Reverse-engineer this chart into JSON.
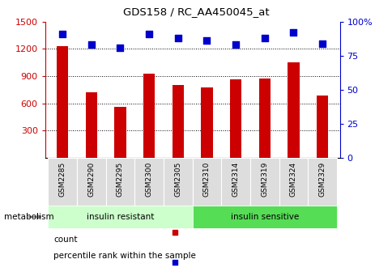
{
  "title": "GDS158 / RC_AA450045_at",
  "samples": [
    "GSM2285",
    "GSM2290",
    "GSM2295",
    "GSM2300",
    "GSM2305",
    "GSM2310",
    "GSM2314",
    "GSM2319",
    "GSM2324",
    "GSM2329"
  ],
  "counts": [
    1230,
    720,
    565,
    930,
    800,
    775,
    865,
    875,
    1055,
    685
  ],
  "percentiles": [
    91,
    83,
    81,
    91,
    88,
    86,
    83,
    88,
    92,
    84
  ],
  "group1_label": "insulin resistant",
  "group2_label": "insulin sensitive",
  "group1_count": 5,
  "group2_count": 5,
  "metabolism_label": "metabolism",
  "bar_color": "#cc0000",
  "dot_color": "#0000cc",
  "left_axis_color": "#cc0000",
  "right_axis_color": "#0000cc",
  "ylim_left": [
    0,
    1500
  ],
  "ylim_right": [
    0,
    100
  ],
  "left_yticks": [
    300,
    600,
    900,
    1200,
    1500
  ],
  "right_yticks": [
    0,
    25,
    50,
    75,
    100
  ],
  "right_yticklabels": [
    "0",
    "25",
    "50",
    "75",
    "100%"
  ],
  "group1_color": "#ccffcc",
  "group2_color": "#55dd55",
  "grid_style": "dotted",
  "background_color": "#ffffff",
  "legend_count_label": "count",
  "legend_percentile_label": "percentile rank within the sample",
  "tick_box_color": "#dddddd",
  "bar_width": 0.4,
  "dot_size": 28
}
